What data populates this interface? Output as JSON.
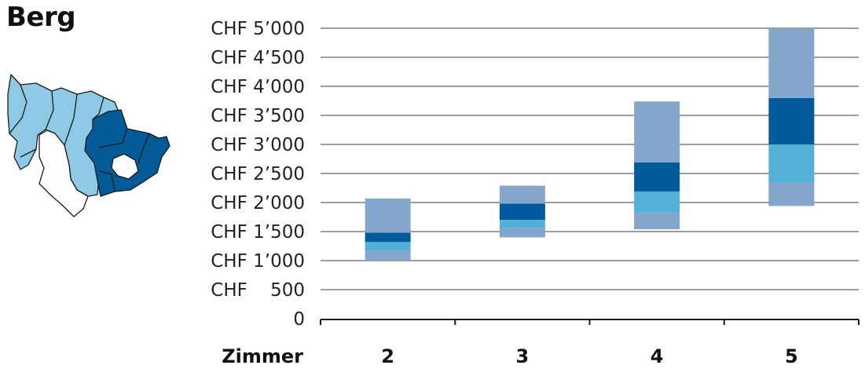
{
  "title": "Berg",
  "map": {
    "icon": "region-map-icon",
    "colors": {
      "neighbor": "#8ecae6",
      "region": "#005b96",
      "other": "#ffffff",
      "stroke": "#1a1a1a"
    }
  },
  "chart_data": {
    "type": "bar",
    "stacked": true,
    "xlabel": "Zimmer",
    "ylabel": "",
    "categories": [
      "2",
      "3",
      "4",
      "5"
    ],
    "ylim": [
      0,
      5000
    ],
    "yticks": [
      0,
      500,
      1000,
      1500,
      2000,
      2500,
      3000,
      3500,
      4000,
      4500,
      5000
    ],
    "ytick_labels": [
      "0",
      "CHF    500",
      "CHF 1’000",
      "CHF 1’500",
      "CHF 2’000",
      "CHF 2’500",
      "CHF 3’000",
      "CHF 3’500",
      "CHF 4’000",
      "CHF 4’500",
      "CHF 5’000"
    ],
    "grid": "horizontal",
    "segment_colors": [
      "#85a6cc",
      "#53b1d7",
      "#005a9c",
      "#85a6cc"
    ],
    "ranges": [
      {
        "category": "2",
        "bounds": [
          1000,
          1170,
          1320,
          1480,
          2070
        ]
      },
      {
        "category": "3",
        "bounds": [
          1400,
          1560,
          1700,
          1980,
          2290
        ]
      },
      {
        "category": "4",
        "bounds": [
          1540,
          1830,
          2190,
          2690,
          3740
        ]
      },
      {
        "category": "5",
        "bounds": [
          1940,
          2340,
          3000,
          3800,
          5000
        ]
      }
    ]
  }
}
